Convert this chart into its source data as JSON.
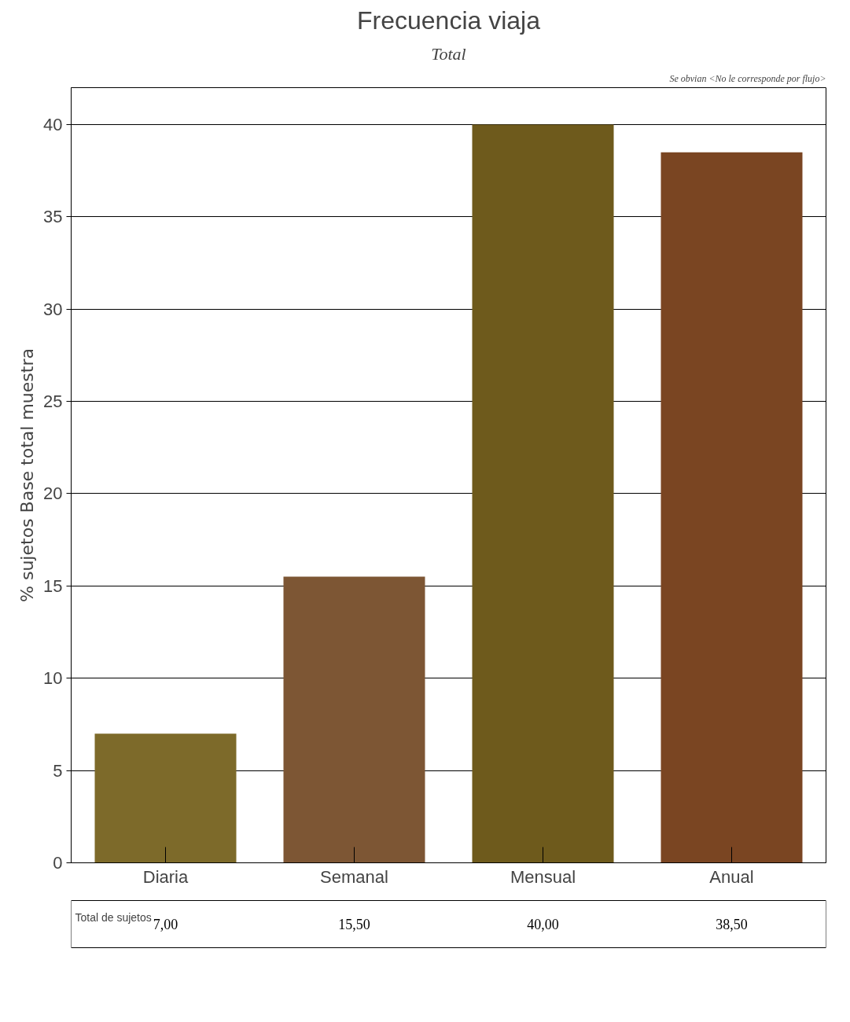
{
  "chart_data": {
    "type": "bar",
    "title": "Frecuencia viaja",
    "subtitle": "Total",
    "ylabel": "% sujetos Base total muestra",
    "categories": [
      "Diaria",
      "Semanal",
      "Mensual",
      "Anual"
    ],
    "values": [
      7.0,
      15.5,
      40.0,
      38.5
    ],
    "colors": [
      "#7d6a2a",
      "#7d5634",
      "#6e5a1c",
      "#7a4522"
    ],
    "value_labels": [
      "7,00",
      "15,50",
      "40,00",
      "38,50"
    ],
    "ylim": [
      0,
      42
    ],
    "yticks": [
      0,
      5,
      10,
      15,
      20,
      25,
      30,
      35,
      40
    ],
    "grid": "y",
    "annotations": [
      "Se obvian <No le corresponde por flujo>",
      "Total de sujetos"
    ]
  }
}
